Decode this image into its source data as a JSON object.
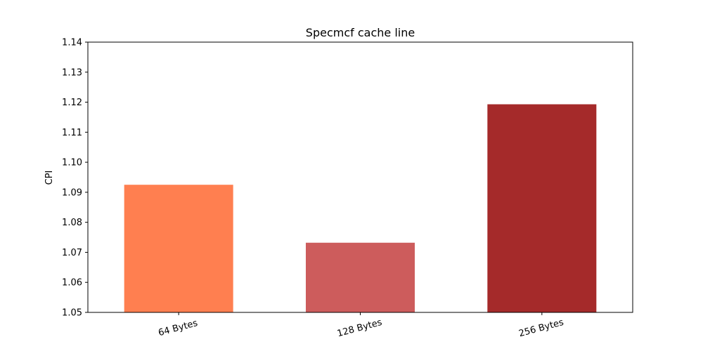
{
  "chart_data": {
    "type": "bar",
    "title": "Specmcf cache line",
    "xlabel": "",
    "ylabel": "CPI",
    "categories": [
      "64 Bytes",
      "128 Bytes",
      "256 Bytes"
    ],
    "values": [
      1.0925,
      1.0732,
      1.1193
    ],
    "colors": [
      "#ff7f50",
      "#cd5c5c",
      "#a52a2a"
    ],
    "ylim": [
      1.05,
      1.14
    ],
    "yticks": [
      "1.05",
      "1.06",
      "1.07",
      "1.08",
      "1.09",
      "1.10",
      "1.11",
      "1.12",
      "1.13",
      "1.14"
    ],
    "grid": false,
    "legend": "none",
    "xtick_rotation_deg": 15
  }
}
